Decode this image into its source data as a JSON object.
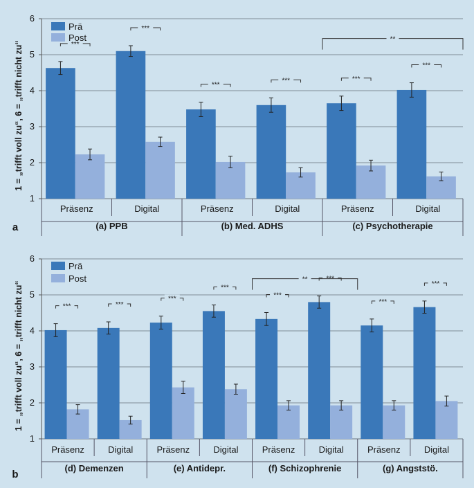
{
  "colors": {
    "pre": "#3a78b9",
    "post": "#94b0dc",
    "background": "#cfe2ee",
    "axis": "#555555"
  },
  "chart_data": [
    {
      "panel_label": "a",
      "type": "bar",
      "ylabel": "1 = „trifft voll zu“, 6 = „trifft nicht zu“",
      "ylim": [
        1,
        6
      ],
      "yticks": [
        "1",
        "2",
        "3",
        "4",
        "5",
        "6"
      ],
      "legend": [
        "Prä",
        "Post"
      ],
      "groups": [
        {
          "label": "(a)  PPB",
          "categories": [
            {
              "label": "Präsenz",
              "pre": 4.63,
              "post": 2.23,
              "pre_err": 0.18,
              "post_err": 0.15,
              "sig": "***"
            },
            {
              "label": "Digital",
              "pre": 5.1,
              "post": 2.58,
              "pre_err": 0.15,
              "post_err": 0.13,
              "sig": "***"
            }
          ]
        },
        {
          "label": "(b)  Med. ADHS",
          "categories": [
            {
              "label": "Präsenz",
              "pre": 3.48,
              "post": 2.02,
              "pre_err": 0.2,
              "post_err": 0.16,
              "sig": "***"
            },
            {
              "label": "Digital",
              "pre": 3.6,
              "post": 1.73,
              "pre_err": 0.2,
              "post_err": 0.13,
              "sig": "***"
            }
          ]
        },
        {
          "label": "(c)  Psychotherapie",
          "categories": [
            {
              "label": "Präsenz",
              "pre": 3.65,
              "post": 1.92,
              "pre_err": 0.2,
              "post_err": 0.15,
              "sig": "***"
            },
            {
              "label": "Digital",
              "pre": 4.02,
              "post": 1.62,
              "pre_err": 0.2,
              "post_err": 0.12,
              "sig": "***"
            }
          ]
        }
      ],
      "bracket": {
        "from_category": 4,
        "to_category": 5,
        "y": 5.45,
        "label": "**"
      }
    },
    {
      "panel_label": "b",
      "type": "bar",
      "ylabel": "1 = „trifft voll zu“, 6 = „trifft nicht zu“",
      "ylim": [
        1,
        6
      ],
      "yticks": [
        "1",
        "2",
        "3",
        "4",
        "5",
        "6"
      ],
      "legend": [
        "Prä",
        "Post"
      ],
      "groups": [
        {
          "label": "(d)  Demenzen",
          "categories": [
            {
              "label": "Präsenz",
              "pre": 4.02,
              "post": 1.82,
              "pre_err": 0.18,
              "post_err": 0.13,
              "sig": "***"
            },
            {
              "label": "Digital",
              "pre": 4.08,
              "post": 1.52,
              "pre_err": 0.17,
              "post_err": 0.11,
              "sig": "***"
            }
          ]
        },
        {
          "label": "(e)  Antidepr.",
          "categories": [
            {
              "label": "Präsenz",
              "pre": 4.23,
              "post": 2.43,
              "pre_err": 0.18,
              "post_err": 0.17,
              "sig": "***"
            },
            {
              "label": "Digital",
              "pre": 4.55,
              "post": 2.38,
              "pre_err": 0.17,
              "post_err": 0.14,
              "sig": "***"
            }
          ]
        },
        {
          "label": "(f)  Schizophrenie",
          "categories": [
            {
              "label": "Präsenz",
              "pre": 4.33,
              "post": 1.93,
              "pre_err": 0.18,
              "post_err": 0.13,
              "sig": "***"
            },
            {
              "label": "Digital",
              "pre": 4.8,
              "post": 1.93,
              "pre_err": 0.17,
              "post_err": 0.13,
              "sig": "***"
            }
          ]
        },
        {
          "label": "(g)  Angststö.",
          "categories": [
            {
              "label": "Präsenz",
              "pre": 4.15,
              "post": 1.93,
              "pre_err": 0.18,
              "post_err": 0.13,
              "sig": "***"
            },
            {
              "label": "Digital",
              "pre": 4.66,
              "post": 2.05,
              "pre_err": 0.17,
              "post_err": 0.14,
              "sig": "***"
            }
          ]
        }
      ],
      "bracket": {
        "from_category": 4,
        "to_category": 5,
        "y": 5.45,
        "label": "**"
      }
    }
  ]
}
